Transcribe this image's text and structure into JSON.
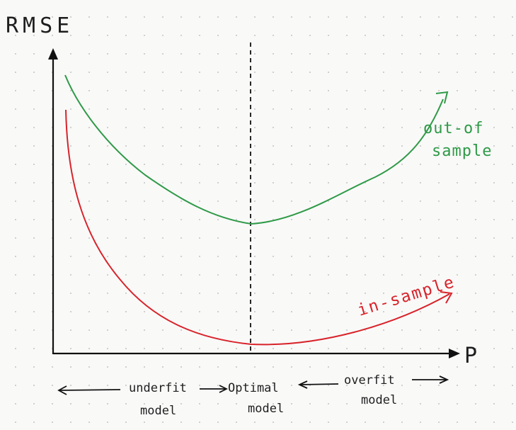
{
  "axes": {
    "y_label": "RMSE",
    "x_label": "P"
  },
  "curves": {
    "out_of_sample": {
      "label_line1": "out-of",
      "label_line2": "sample",
      "color": "#2f9a47"
    },
    "in_sample": {
      "label": "in-sample",
      "color": "#d8232a"
    }
  },
  "optimal_line": {
    "style": "dashed",
    "color": "#111111"
  },
  "regions": {
    "underfit_top": "underfit",
    "underfit_bottom": "model",
    "optimal_top": "Optimal",
    "optimal_bottom": "model",
    "overfit_top": "overfit",
    "overfit_bottom": "model"
  }
}
